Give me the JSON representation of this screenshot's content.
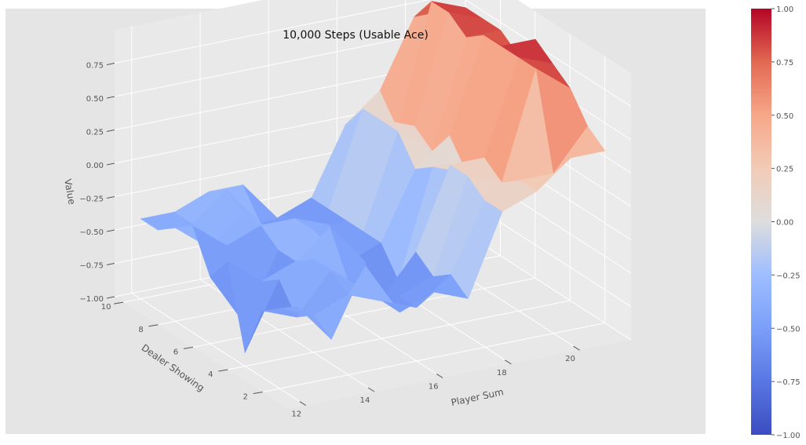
{
  "chart_data": {
    "type": "surface",
    "title": "10,000 Steps (Usable Ace)",
    "xlabel": "Player Sum",
    "ylabel": "Dealer Showing",
    "zlabel": "Value",
    "x": [
      12,
      13,
      14,
      15,
      16,
      17,
      18,
      19,
      20,
      21
    ],
    "y": [
      1,
      2,
      3,
      4,
      5,
      6,
      7,
      8,
      9,
      10
    ],
    "x_ticks": [
      12,
      14,
      16,
      18,
      20
    ],
    "y_ticks": [
      2,
      4,
      6,
      8,
      10
    ],
    "z_ticks": [
      -1.0,
      -0.75,
      -0.5,
      -0.25,
      0.0,
      0.25,
      0.5,
      0.75
    ],
    "z_tick_labels": [
      "−1.00",
      "−0.75",
      "−0.50",
      "−0.25",
      "0.00",
      "0.25",
      "0.50",
      "0.75"
    ],
    "zlim": [
      -1.0,
      1.0
    ],
    "colormap": "coolwarm",
    "colorbar": {
      "ticks": [
        -1.0,
        -0.75,
        -0.5,
        -0.25,
        0.0,
        0.25,
        0.5,
        0.75,
        1.0
      ],
      "tick_labels": [
        "−1.00",
        "−0.75",
        "−0.50",
        "−0.25",
        "0.00",
        "0.25",
        "0.50",
        "0.75",
        "1.00"
      ],
      "low_color": "#3b4cc0",
      "mid_color": "#dddddd",
      "high_color": "#b40426"
    },
    "grid": true,
    "z_values": [
      [
        -0.3,
        -0.6,
        -0.1,
        -0.5,
        -0.4,
        -0.5,
        0.1,
        0.2,
        0.4,
        0.4
      ],
      [
        -0.4,
        -0.5,
        -0.4,
        -0.5,
        -0.6,
        -0.4,
        0.1,
        0.2,
        0.2,
        0.5
      ],
      [
        -0.5,
        -0.6,
        -0.3,
        -0.5,
        -0.6,
        -0.5,
        0.2,
        0.1,
        0.9,
        0.7
      ],
      [
        -0.9,
        -0.4,
        -0.3,
        -0.5,
        -0.7,
        -0.4,
        0.2,
        0.2,
        0.9,
        0.8
      ],
      [
        -0.3,
        -0.5,
        -0.4,
        -0.2,
        -0.5,
        -0.7,
        0.1,
        0.0,
        0.9,
        0.9
      ],
      [
        -0.5,
        -0.9,
        -0.4,
        -0.3,
        -0.6,
        -0.5,
        0.0,
        0.2,
        0.9,
        0.7
      ],
      [
        -0.2,
        -0.4,
        -0.3,
        -0.3,
        -0.4,
        -0.5,
        0.2,
        0.0,
        0.8,
        0.8
      ],
      [
        -0.3,
        -0.5,
        -0.3,
        -0.5,
        -0.6,
        -0.5,
        0.2,
        0.1,
        0.9,
        0.8
      ],
      [
        -0.4,
        -0.4,
        -0.2,
        -0.5,
        -0.5,
        -0.5,
        0.2,
        0.0,
        0.9,
        0.8
      ],
      [
        -0.4,
        -0.4,
        -0.3,
        -0.3,
        -0.6,
        -0.5,
        0.0,
        0.2,
        0.7,
        0.7
      ]
    ]
  }
}
